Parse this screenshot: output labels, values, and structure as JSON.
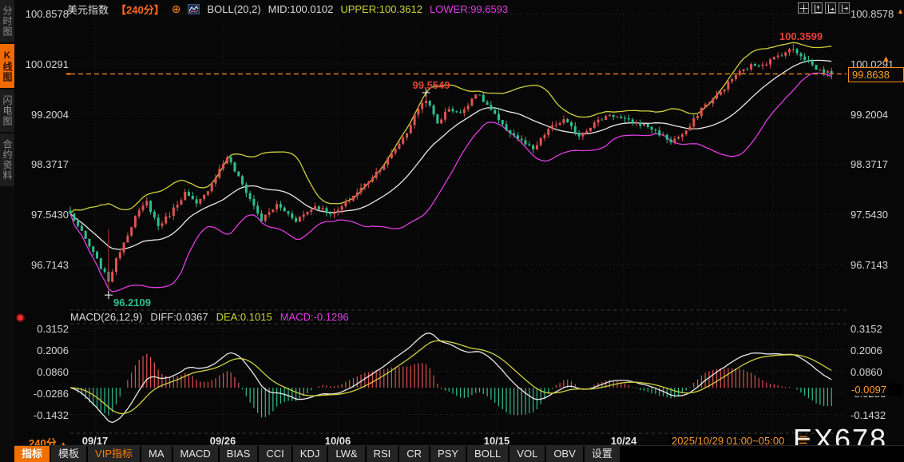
{
  "header": {
    "symbol": "美元指数",
    "timeframe": "【240分】",
    "add_icon": "⊕",
    "indicator": "BOLL(20,2)",
    "mid": "MID:100.0102",
    "upper": "UPPER:100.3612",
    "lower": "LOWER:99.6593"
  },
  "sidebar": {
    "items": [
      {
        "label": "分时图",
        "active": false
      },
      {
        "label": "K线图",
        "active": true
      },
      {
        "label": "闪电图",
        "active": false
      },
      {
        "label": "合约资料",
        "active": false
      }
    ]
  },
  "price_axis": {
    "left": [
      "100.8578",
      "100.0291",
      "99.2004",
      "98.3717",
      "97.5430",
      "96.7143"
    ],
    "right": [
      "100.8578",
      "100.0291",
      "99.2004",
      "98.3717",
      "97.5430",
      "96.7143"
    ],
    "current": "99.8638",
    "arrow": "▲"
  },
  "macd_pane": {
    "title": "MACD(26,12,9)",
    "diff": "DIFF:0.0367",
    "dea": "DEA:0.1015",
    "macd": "MACD:-0.1296",
    "ticks": [
      "0.3152",
      "0.2006",
      "0.0860",
      "-0.0286",
      "-0.1432"
    ],
    "current": "-0.0097"
  },
  "annotations": {
    "swing_high": "99.5549",
    "swing_low": "96.2109",
    "peak_high": "100.3599"
  },
  "xaxis": {
    "timeframe": "240分",
    "timeframe_arrow": "▲",
    "dates": [
      "09/17",
      "09/26",
      "10/06",
      "10/15",
      "10/24"
    ],
    "current_range": "2025/10/29 01:00~05:00",
    "menu_icon": "☰"
  },
  "tabs": [
    {
      "label": "指标"
    },
    {
      "label": "模板"
    },
    {
      "label": "VIP指标"
    },
    {
      "label": "MA"
    },
    {
      "label": "MACD"
    },
    {
      "label": "BIAS"
    },
    {
      "label": "CCI"
    },
    {
      "label": "KDJ"
    },
    {
      "label": "LW&"
    },
    {
      "label": "RSI"
    },
    {
      "label": "CR"
    },
    {
      "label": "PSY"
    },
    {
      "label": "BOLL"
    },
    {
      "label": "VOL"
    },
    {
      "label": "OBV"
    },
    {
      "label": "设置"
    }
  ],
  "watermark": "EX678",
  "chart_data": {
    "type": "candlestick",
    "title": "美元指数 240分 K线图 + BOLL(20,2) + MACD(26,12,9)",
    "n": 200,
    "y_ticks": [
      100.8578,
      100.0291,
      99.2004,
      98.3717,
      97.543,
      96.7143
    ],
    "macd_ticks": [
      0.3152,
      0.2006,
      0.086,
      -0.0286,
      -0.1432
    ],
    "current_price": 99.8638,
    "boll": {
      "period": 20,
      "mult": 2,
      "mid": 100.0102,
      "upper": 100.3612,
      "lower": 99.6593
    },
    "macd": {
      "params": [
        26,
        12,
        9
      ],
      "diff": 0.0367,
      "dea": 0.1015,
      "macd": -0.1296,
      "axis_current": -0.0097
    },
    "markers": {
      "low": {
        "index": 10,
        "price": 96.2109
      },
      "high": {
        "index": 93,
        "price": 99.5549
      },
      "peak": {
        "index": 189,
        "price": 100.3599
      }
    },
    "pins": {
      "10": {
        "low": 96.2109
      },
      "93": {
        "high": 99.5549
      },
      "189": {
        "high": 100.3599
      },
      "199": {
        "close": 99.8638
      }
    },
    "price_anchors": [
      [
        0,
        97.55
      ],
      [
        2,
        97.35
      ],
      [
        6,
        96.9
      ],
      [
        10,
        96.45
      ],
      [
        13,
        96.95
      ],
      [
        17,
        97.5
      ],
      [
        20,
        97.75
      ],
      [
        23,
        97.35
      ],
      [
        26,
        97.55
      ],
      [
        30,
        97.9
      ],
      [
        33,
        97.7
      ],
      [
        35,
        97.85
      ],
      [
        41,
        98.5
      ],
      [
        44,
        98.15
      ],
      [
        47,
        97.8
      ],
      [
        50,
        97.45
      ],
      [
        54,
        97.7
      ],
      [
        59,
        97.45
      ],
      [
        64,
        97.68
      ],
      [
        69,
        97.55
      ],
      [
        74,
        97.85
      ],
      [
        78,
        98.1
      ],
      [
        83,
        98.45
      ],
      [
        88,
        98.9
      ],
      [
        91,
        99.3
      ],
      [
        93,
        99.45
      ],
      [
        96,
        99.05
      ],
      [
        99,
        99.3
      ],
      [
        102,
        99.2
      ],
      [
        106,
        99.55
      ],
      [
        109,
        99.35
      ],
      [
        113,
        99.0
      ],
      [
        118,
        98.75
      ],
      [
        121,
        98.6
      ],
      [
        125,
        98.95
      ],
      [
        129,
        99.1
      ],
      [
        133,
        98.85
      ],
      [
        137,
        99.05
      ],
      [
        141,
        99.2
      ],
      [
        145,
        99.1
      ],
      [
        151,
        99.0
      ],
      [
        157,
        98.75
      ],
      [
        161,
        98.9
      ],
      [
        165,
        99.3
      ],
      [
        169,
        99.5
      ],
      [
        174,
        99.85
      ],
      [
        178,
        100.0
      ],
      [
        182,
        100.05
      ],
      [
        186,
        100.2
      ],
      [
        189,
        100.28
      ],
      [
        192,
        100.12
      ],
      [
        195,
        99.95
      ],
      [
        199,
        99.8638
      ]
    ],
    "colors": {
      "up": "#e05252",
      "down": "#2fbf8f",
      "boll_mid": "#e8e8e8",
      "boll_upper": "#cfd03a",
      "boll_lower": "#e23ce2",
      "macd_dif": "#e8e8e8",
      "macd_dea": "#cfd03a",
      "hist_pos": "#e05252",
      "hist_neg": "#2fbf8f",
      "price_line": "#ff8b1f",
      "accent_orange": "#ff7e00",
      "label_yellow": "#cdd531",
      "label_magenta": "#e23ce2",
      "annotation_red": "#e8413c",
      "annotation_green": "#2fbf8f"
    }
  }
}
